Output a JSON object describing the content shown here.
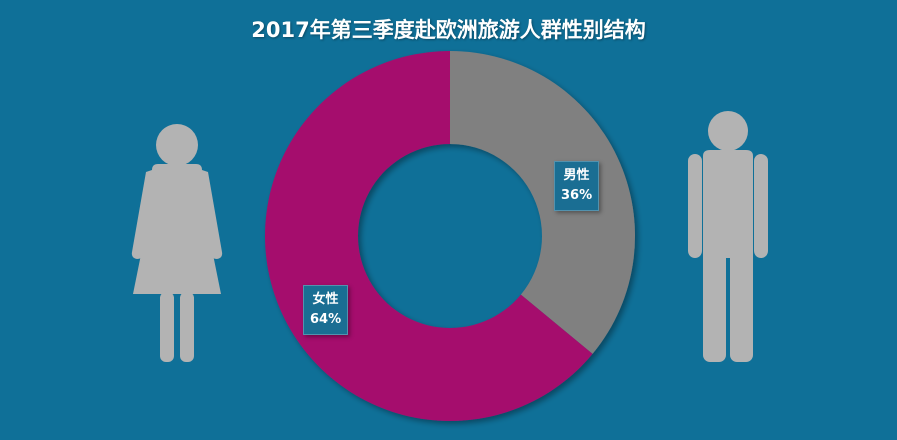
{
  "title": "2017年第三季度赴欧洲旅游人群性别结构",
  "colors": {
    "background": "#0f7098",
    "male": "#808080",
    "female": "#a50f6d",
    "icon": "#b3b3b3",
    "label_bg": "#1a6e93"
  },
  "icons": {
    "left": "female-figure-icon",
    "right": "male-figure-icon"
  },
  "chart_data": {
    "type": "pie",
    "donut": true,
    "categories": [
      "男性",
      "女性"
    ],
    "values": [
      36,
      64
    ],
    "value_labels": [
      "36%",
      "64%"
    ],
    "title": "2017年第三季度赴欧洲旅游人群性别结构",
    "start_angle": "12 o'clock, clockwise",
    "legend": "none"
  }
}
